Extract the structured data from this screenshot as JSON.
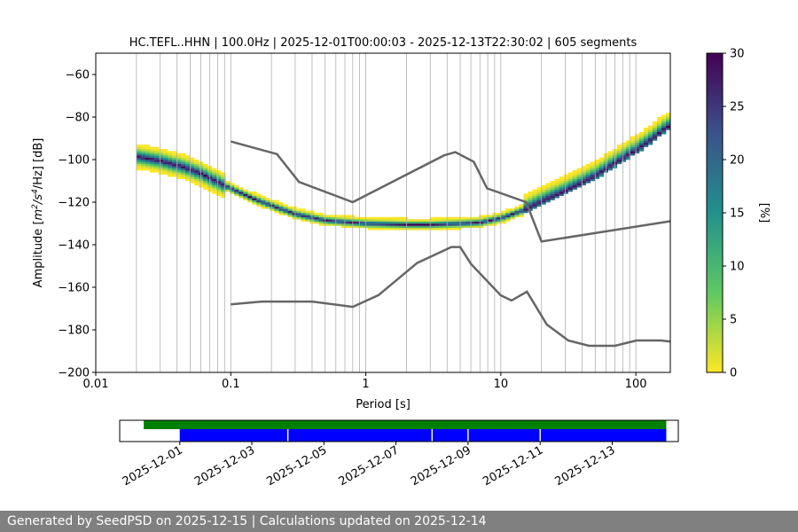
{
  "chart_data": [
    {
      "type": "heatmap",
      "title": "HC.TEFL..HHN | 100.0Hz | 2025-12-01T00:00:03 - 2025-12-13T22:30:02 | 605 segments",
      "xlabel": "Period [s]",
      "ylabel_parts": [
        "Amplitude [",
        "m",
        "2",
        "/s",
        "4",
        "/Hz] [dB]"
      ],
      "x_scale": "log",
      "xlim": [
        0.01,
        180
      ],
      "ylim": [
        -200,
        -50
      ],
      "x_ticks": [
        0.01,
        0.1,
        1,
        10,
        100
      ],
      "x_tick_labels": [
        "0.01",
        "0.1",
        "1",
        "10",
        "100"
      ],
      "y_ticks": [
        -200,
        -180,
        -160,
        -140,
        -120,
        -100,
        -80,
        -60
      ],
      "y_tick_labels": [
        "−200",
        "−180",
        "−160",
        "−140",
        "−120",
        "−100",
        "−80",
        "−60"
      ],
      "grid": "vertical",
      "colorbar": {
        "label": "[%]",
        "range": [
          0,
          30
        ],
        "ticks": [
          0,
          5,
          10,
          15,
          20,
          25,
          30
        ],
        "tick_labels": [
          "0",
          "5",
          "10",
          "15",
          "20",
          "25",
          "30"
        ],
        "colors": [
          "#fde725",
          "#5ec962",
          "#21918c",
          "#3b528b",
          "#440154"
        ]
      },
      "mode_curve": {
        "period": [
          0.02,
          0.03,
          0.045,
          0.06,
          0.08,
          0.1,
          0.15,
          0.2,
          0.3,
          0.5,
          0.8,
          1,
          2,
          3,
          5,
          7,
          10,
          15,
          20,
          30,
          50,
          70,
          100,
          130,
          170
        ],
        "db": [
          -99,
          -101,
          -104,
          -107,
          -111,
          -114,
          -119,
          -122,
          -126,
          -129,
          -130,
          -130.5,
          -131,
          -131,
          -130.5,
          -130,
          -128,
          -124,
          -120,
          -115,
          -108,
          -102,
          -96,
          -91,
          -85
        ]
      },
      "new_high_noise_model": {
        "period": [
          0.1,
          0.22,
          0.32,
          0.8,
          3.8,
          4.6,
          6.3,
          7.9,
          15.4,
          20,
          354.8
        ],
        "db": [
          -91.5,
          -97.4,
          -110.5,
          -120,
          -98,
          -96.5,
          -101,
          -113.5,
          -120,
          -138.5,
          -126
        ]
      },
      "new_low_noise_model": {
        "period": [
          0.1,
          0.17,
          0.4,
          0.8,
          1.24,
          2.4,
          4.3,
          5,
          6,
          10,
          12,
          15.6,
          21.9,
          31.6,
          45,
          70,
          101,
          154,
          328
        ],
        "db": [
          -168,
          -166.7,
          -166.7,
          -169.2,
          -163.7,
          -148.6,
          -141.1,
          -141.1,
          -149,
          -163.8,
          -166.2,
          -162.1,
          -177.5,
          -185,
          -187.5,
          -187.5,
          -185,
          -185,
          -187.5
        ]
      }
    },
    {
      "type": "timeline",
      "date_tick_labels": [
        "2025-12-01",
        "2025-12-03",
        "2025-12-05",
        "2025-12-07",
        "2025-12-09",
        "2025-12-11",
        "2025-12-13"
      ],
      "date_range": [
        "2025-11-29T08:00",
        "2025-12-14T20:00"
      ],
      "available_data": {
        "color": "#008000",
        "start": "2025-11-30T00:00",
        "end": "2025-12-14T12:00"
      },
      "processed_data": {
        "color": "#0000ff",
        "start": "2025-12-01T00:00",
        "end": "2025-12-14T12:00",
        "gaps": [
          "2025-12-04T00:00",
          "2025-12-08T00:00",
          "2025-12-09T00:00",
          "2025-12-11T00:00"
        ]
      }
    }
  ],
  "footer": {
    "text": "Generated by SeedPSD on 2025-12-15 | Calculations updated on 2025-12-14"
  }
}
